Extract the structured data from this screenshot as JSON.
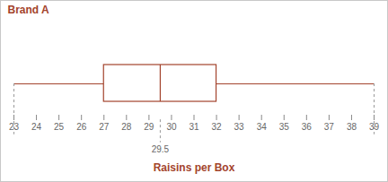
{
  "chart_data": {
    "type": "box",
    "orientation": "horizontal",
    "title": "Brand A",
    "x_label": "Raisins per Box",
    "min": 23,
    "q1": 27,
    "median": 29.5,
    "q3": 32,
    "max": 39,
    "color": "#a3432c",
    "xlim": [
      23,
      39
    ],
    "xticks": [
      23,
      24,
      25,
      26,
      27,
      28,
      29,
      30,
      31,
      32,
      33,
      34,
      35,
      36,
      37,
      38,
      39
    ],
    "annotations": [
      {
        "x": 29.5,
        "text": "29.5"
      }
    ]
  }
}
